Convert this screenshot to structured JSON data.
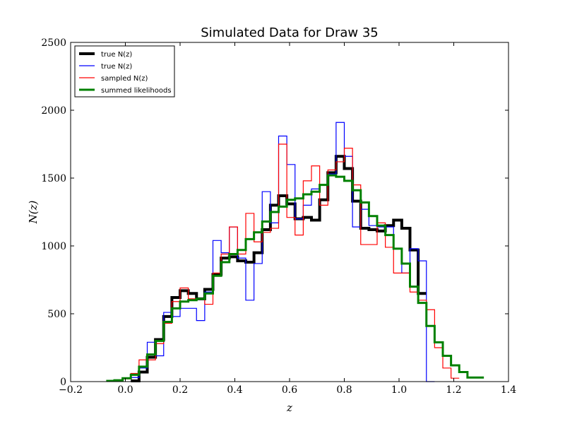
{
  "chart_data": {
    "type": "line",
    "title": "Simulated Data for Draw 35",
    "xlabel": "z",
    "ylabel": "N(z)",
    "xlim": [
      -0.2,
      1.4
    ],
    "ylim": [
      0,
      2500
    ],
    "xticks": [
      -0.2,
      0.0,
      0.2,
      0.4,
      0.6,
      0.8,
      1.0,
      1.2,
      1.4
    ],
    "xtick_labels": [
      "−0.2",
      "0.0",
      "0.2",
      "0.4",
      "0.6",
      "0.8",
      "1.0",
      "1.2",
      "1.4"
    ],
    "yticks": [
      0,
      500,
      1000,
      1500,
      2000,
      2500
    ],
    "ytick_labels": [
      "0",
      "500",
      "1000",
      "1500",
      "2000",
      "2500"
    ],
    "grid": false,
    "legend_position": "top-left",
    "step_style": "steps-post",
    "series": [
      {
        "name": "true N(z)",
        "color": "#000000",
        "x": [
          0.02,
          0.05,
          0.08,
          0.11,
          0.14,
          0.17,
          0.2,
          0.23,
          0.26,
          0.29,
          0.32,
          0.35,
          0.38,
          0.41,
          0.44,
          0.47,
          0.5,
          0.53,
          0.56,
          0.59,
          0.62,
          0.65,
          0.68,
          0.71,
          0.74,
          0.77,
          0.8,
          0.83,
          0.86,
          0.89,
          0.92,
          0.95,
          0.98,
          1.01,
          1.04,
          1.07
        ],
        "y": [
          5,
          70,
          180,
          310,
          480,
          620,
          670,
          650,
          610,
          680,
          790,
          910,
          920,
          890,
          880,
          950,
          1120,
          1300,
          1370,
          1310,
          1200,
          1210,
          1190,
          1340,
          1540,
          1660,
          1570,
          1330,
          1130,
          1120,
          1110,
          1150,
          1190,
          1130,
          970,
          650
        ]
      },
      {
        "name": "true N(z)",
        "color": "#0000ff",
        "x": [
          0.02,
          0.05,
          0.08,
          0.11,
          0.14,
          0.17,
          0.2,
          0.23,
          0.26,
          0.29,
          0.32,
          0.35,
          0.38,
          0.41,
          0.44,
          0.47,
          0.5,
          0.53,
          0.56,
          0.59,
          0.62,
          0.65,
          0.68,
          0.71,
          0.74,
          0.77,
          0.8,
          0.83,
          0.86,
          0.89,
          0.92,
          0.95,
          0.98,
          1.01,
          1.04,
          1.07,
          1.1
        ],
        "y": [
          30,
          100,
          290,
          190,
          510,
          480,
          540,
          540,
          450,
          660,
          1040,
          950,
          1140,
          910,
          600,
          870,
          1400,
          1170,
          1810,
          1600,
          1200,
          1300,
          1420,
          1450,
          1530,
          1910,
          1660,
          1140,
          1270,
          1150,
          1140,
          1140,
          980,
          800,
          980,
          890,
          0
        ]
      },
      {
        "name": "sampled N(z)",
        "color": "#ff0000",
        "x": [
          -0.04,
          -0.01,
          0.02,
          0.05,
          0.08,
          0.11,
          0.14,
          0.17,
          0.2,
          0.23,
          0.26,
          0.29,
          0.32,
          0.35,
          0.38,
          0.41,
          0.44,
          0.47,
          0.5,
          0.53,
          0.56,
          0.59,
          0.62,
          0.65,
          0.68,
          0.71,
          0.74,
          0.77,
          0.8,
          0.83,
          0.86,
          0.89,
          0.92,
          0.95,
          0.98,
          1.01,
          1.04,
          1.07,
          1.1,
          1.13,
          1.16,
          1.19
        ],
        "y": [
          10,
          20,
          60,
          160,
          160,
          280,
          430,
          590,
          690,
          610,
          610,
          570,
          800,
          940,
          1140,
          940,
          1240,
          1030,
          1100,
          1130,
          1750,
          1210,
          1080,
          1480,
          1590,
          1300,
          1560,
          1620,
          1720,
          1450,
          1010,
          1010,
          1170,
          990,
          800,
          800,
          660,
          600,
          530,
          250,
          100,
          25
        ]
      },
      {
        "name": "summed likelihoods",
        "color": "#008000",
        "x": [
          -0.07,
          -0.04,
          -0.01,
          0.02,
          0.05,
          0.08,
          0.11,
          0.14,
          0.17,
          0.2,
          0.23,
          0.26,
          0.29,
          0.32,
          0.35,
          0.38,
          0.41,
          0.44,
          0.47,
          0.5,
          0.53,
          0.56,
          0.59,
          0.62,
          0.65,
          0.68,
          0.71,
          0.74,
          0.77,
          0.8,
          0.83,
          0.86,
          0.89,
          0.92,
          0.95,
          0.98,
          1.01,
          1.04,
          1.07,
          1.1,
          1.13,
          1.16,
          1.19,
          1.22,
          1.25,
          1.28
        ],
        "y": [
          5,
          10,
          25,
          50,
          110,
          200,
          300,
          440,
          540,
          590,
          600,
          610,
          650,
          780,
          880,
          940,
          970,
          1050,
          1100,
          1180,
          1250,
          1290,
          1340,
          1350,
          1380,
          1400,
          1450,
          1520,
          1510,
          1480,
          1410,
          1320,
          1220,
          1150,
          1080,
          980,
          870,
          700,
          580,
          410,
          290,
          190,
          120,
          70,
          30,
          30
        ]
      }
    ]
  }
}
